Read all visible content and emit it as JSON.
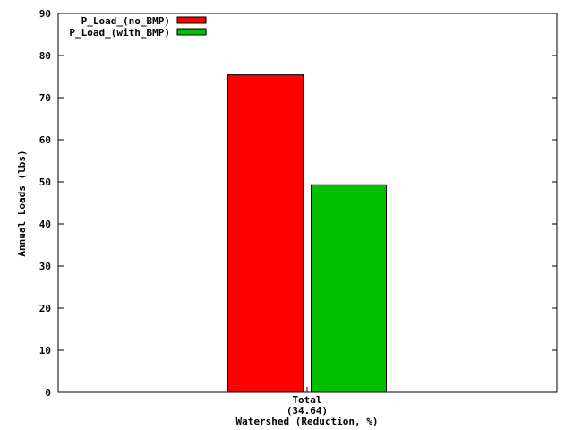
{
  "chart_data": {
    "type": "bar",
    "xlabel": "Watershed (Reduction, %)",
    "ylabel": "Annual Loads (lbs)",
    "categories": [
      {
        "line1": "Total",
        "line2": "(34.64)"
      }
    ],
    "series": [
      {
        "name": "P_Load_(no_BMP)",
        "color": "#ff0000",
        "values": [
          75.4
        ]
      },
      {
        "name": "P_Load_(with_BMP)",
        "color": "#00c000",
        "values": [
          49.3
        ]
      }
    ],
    "ylim": [
      0,
      90
    ],
    "yticks": [
      0,
      10,
      20,
      30,
      40,
      50,
      60,
      70,
      80,
      90
    ],
    "grid": false,
    "legend": "top-left"
  }
}
